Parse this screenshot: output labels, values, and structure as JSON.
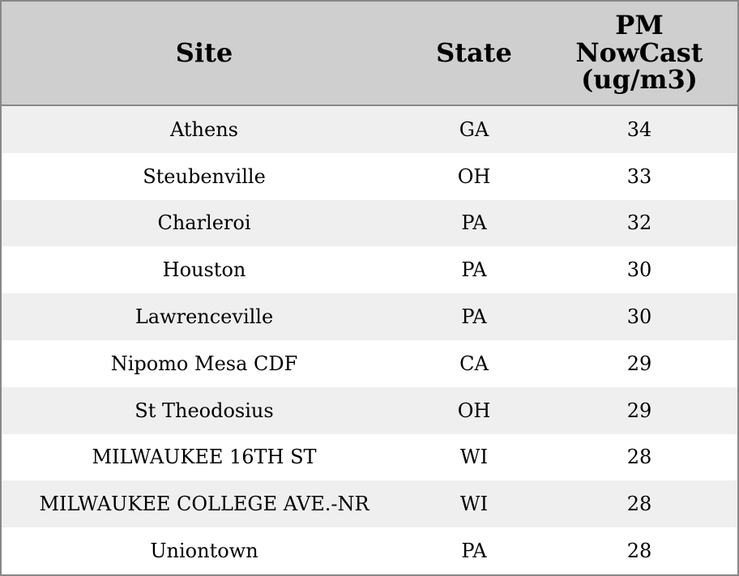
{
  "table": {
    "columns": [
      "Site",
      "State",
      "PM NowCast (ug/m3)"
    ],
    "rows": [
      [
        "Athens",
        "GA",
        34
      ],
      [
        "Steubenville",
        "OH",
        33
      ],
      [
        "Charleroi",
        "PA",
        32
      ],
      [
        "Houston",
        "PA",
        30
      ],
      [
        "Lawrenceville",
        "PA",
        30
      ],
      [
        "Nipomo Mesa CDF",
        "CA",
        29
      ],
      [
        "St Theodosius",
        "OH",
        29
      ],
      [
        "MILWAUKEE 16TH ST",
        "WI",
        28
      ],
      [
        "MILWAUKEE COLLEGE AVE.-NR",
        "WI",
        28
      ],
      [
        "Uniontown",
        "PA",
        28
      ]
    ]
  }
}
